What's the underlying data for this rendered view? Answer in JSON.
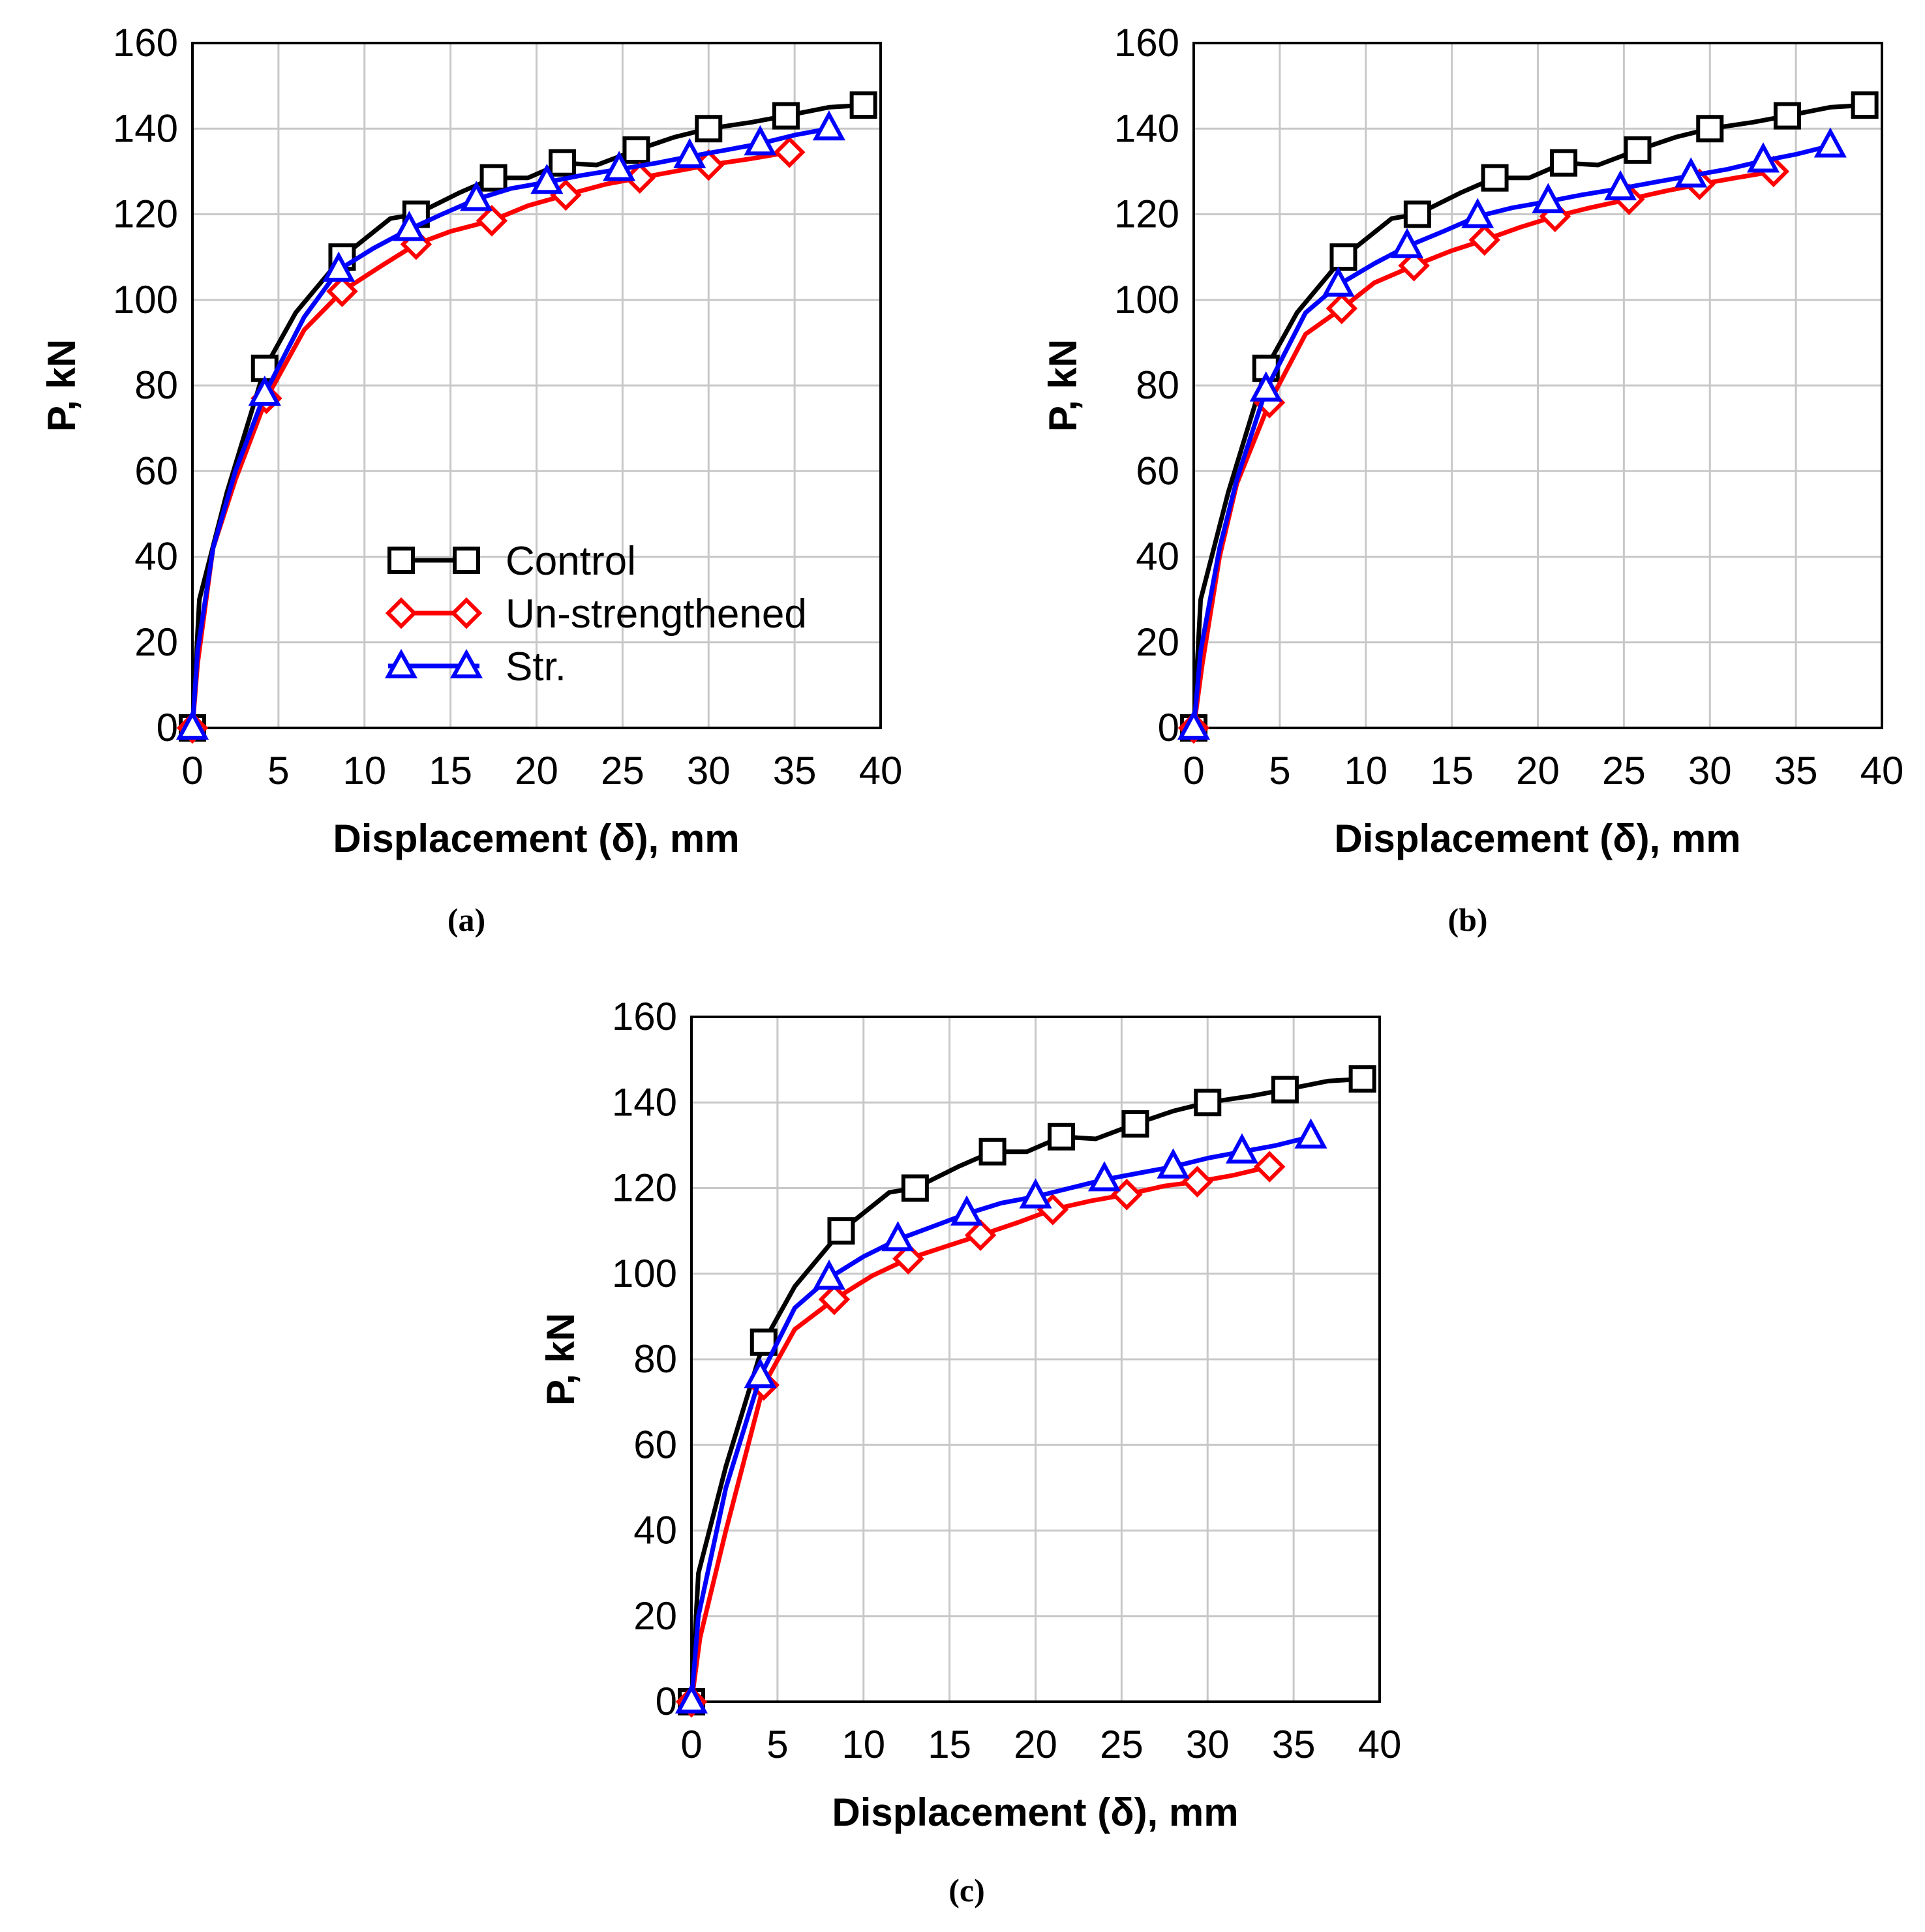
{
  "chart_data": [
    {
      "panel": "(a)",
      "type": "line",
      "xlabel": "Displacement (δ), mm",
      "ylabel": "P, kN",
      "xlim": [
        0,
        40
      ],
      "ylim": [
        0,
        160
      ],
      "xticks": [
        0,
        5,
        10,
        15,
        20,
        25,
        30,
        35,
        40
      ],
      "yticks": [
        0,
        20,
        40,
        60,
        80,
        100,
        120,
        140,
        160
      ],
      "grid": true,
      "legend": {
        "placement": "center-left",
        "entries": [
          "Control",
          "Un-strengthened",
          "Str."
        ]
      },
      "series": [
        {
          "name": "Control",
          "color": "#000000",
          "marker": "square",
          "x": [
            0,
            0.4,
            2,
            4.2,
            6,
            8.7,
            11.5,
            13,
            15.5,
            17.5,
            19.5,
            21.5,
            23.5,
            25.8,
            28,
            30,
            32.5,
            34.5,
            37,
            39
          ],
          "y": [
            0,
            30,
            55,
            84,
            97,
            110,
            119,
            120,
            125,
            128.5,
            128.5,
            132,
            131.5,
            135,
            138,
            140,
            141.5,
            143,
            145,
            145.5
          ],
          "markers_x": [
            0,
            4.2,
            8.7,
            13,
            17.5,
            21.5,
            25.8,
            30,
            34.5,
            39
          ],
          "markers_y": [
            0,
            84,
            110,
            120,
            128.5,
            132,
            135,
            140,
            143,
            145.5
          ]
        },
        {
          "name": "Un-strengthened",
          "color": "#ff0000",
          "marker": "diamond",
          "x": [
            0,
            0.3,
            1.2,
            2.5,
            4.3,
            6.5,
            8.7,
            11,
            13,
            15,
            17.4,
            19.5,
            21.7,
            24,
            26,
            28,
            30,
            32.5,
            34.7
          ],
          "y": [
            0,
            15,
            42,
            58,
            77,
            93,
            102,
            108,
            113,
            116,
            118.5,
            122,
            124.5,
            127,
            128.5,
            130,
            131.5,
            133,
            134.5
          ],
          "markers_x": [
            0,
            4.3,
            8.7,
            13,
            17.4,
            21.7,
            26,
            30,
            34.7
          ],
          "markers_y": [
            0,
            77,
            102,
            113,
            118.5,
            124.5,
            128.5,
            131.5,
            134.5
          ]
        },
        {
          "name": "Str.",
          "color": "#0000ff",
          "marker": "triangle",
          "x": [
            0,
            0.3,
            1.2,
            2.5,
            4.2,
            6.5,
            8.5,
            10.5,
            12.6,
            14.5,
            16.5,
            18.5,
            20.6,
            22.5,
            24.8,
            27,
            28.9,
            31,
            33,
            35,
            37
          ],
          "y": [
            0,
            18,
            42,
            60,
            78,
            96,
            107,
            112,
            116.5,
            120,
            123.5,
            126,
            127.5,
            129,
            130.5,
            132,
            133.5,
            135,
            136.5,
            138.5,
            140
          ],
          "markers_x": [
            0,
            4.2,
            8.5,
            12.6,
            16.5,
            20.6,
            24.8,
            28.9,
            33,
            37
          ],
          "markers_y": [
            0,
            78,
            107,
            116.5,
            123.5,
            127.5,
            130.5,
            133.5,
            136.5,
            140
          ]
        }
      ]
    },
    {
      "panel": "(b)",
      "type": "line",
      "xlabel": "Displacement (δ), mm",
      "ylabel": "P, kN",
      "xlim": [
        0,
        40
      ],
      "ylim": [
        0,
        160
      ],
      "xticks": [
        0,
        5,
        10,
        15,
        20,
        25,
        30,
        35,
        40
      ],
      "yticks": [
        0,
        20,
        40,
        60,
        80,
        100,
        120,
        140,
        160
      ],
      "grid": true,
      "series": [
        {
          "name": "Control",
          "color": "#000000",
          "marker": "square",
          "x": [
            0,
            0.4,
            2,
            4.2,
            6,
            8.7,
            11.5,
            13,
            15.5,
            17.5,
            19.5,
            21.5,
            23.5,
            25.8,
            28,
            30,
            32.5,
            34.5,
            37,
            39
          ],
          "y": [
            0,
            30,
            55,
            84,
            97,
            110,
            119,
            120,
            125,
            128.5,
            128.5,
            132,
            131.5,
            135,
            138,
            140,
            141.5,
            143,
            145,
            145.5
          ],
          "markers_x": [
            0,
            4.2,
            8.7,
            13,
            17.5,
            21.5,
            25.8,
            30,
            34.5,
            39
          ],
          "markers_y": [
            0,
            84,
            110,
            120,
            128.5,
            132,
            135,
            140,
            143,
            145.5
          ]
        },
        {
          "name": "Un-strengthened",
          "color": "#ff0000",
          "marker": "diamond",
          "x": [
            0,
            0.5,
            1.5,
            2.5,
            4.4,
            6.5,
            8.6,
            10.5,
            12.8,
            15,
            16.9,
            19,
            21,
            23,
            25.3,
            27.5,
            29.4,
            31.5,
            33.7
          ],
          "y": [
            0,
            15,
            40,
            57,
            76,
            92,
            98,
            104,
            108,
            111.5,
            114,
            117,
            119.5,
            121.5,
            123.5,
            125.5,
            127,
            128.5,
            130
          ],
          "markers_x": [
            0,
            4.4,
            8.6,
            12.8,
            16.9,
            21,
            25.3,
            29.4,
            33.7
          ],
          "markers_y": [
            0,
            76,
            98,
            108,
            114,
            119.5,
            123.5,
            127,
            130
          ]
        },
        {
          "name": "Str.",
          "color": "#0000ff",
          "marker": "triangle",
          "x": [
            0,
            0.4,
            1.5,
            2.5,
            4.2,
            6.5,
            8.4,
            10.5,
            12.4,
            14.5,
            16.5,
            18.5,
            20.6,
            22.5,
            24.8,
            26.8,
            28.9,
            31,
            33.1,
            35,
            37
          ],
          "y": [
            0,
            18,
            42,
            58,
            79,
            97,
            103.5,
            108.5,
            112.5,
            116,
            119.5,
            121.5,
            123,
            124.5,
            126,
            127.5,
            129,
            130.5,
            132.5,
            134,
            136
          ],
          "markers_x": [
            0,
            4.2,
            8.4,
            12.4,
            16.5,
            20.6,
            24.8,
            28.9,
            33.1,
            37
          ],
          "markers_y": [
            0,
            79,
            103.5,
            112.5,
            119.5,
            123,
            126,
            129,
            132.5,
            136
          ]
        }
      ]
    },
    {
      "panel": "(c)",
      "type": "line",
      "xlabel": "Displacement (δ), mm",
      "ylabel": "P, kN",
      "xlim": [
        0,
        40
      ],
      "ylim": [
        0,
        160
      ],
      "xticks": [
        0,
        5,
        10,
        15,
        20,
        25,
        30,
        35,
        40
      ],
      "yticks": [
        0,
        20,
        40,
        60,
        80,
        100,
        120,
        140,
        160
      ],
      "grid": true,
      "series": [
        {
          "name": "Control",
          "color": "#000000",
          "marker": "square",
          "x": [
            0,
            0.4,
            2,
            4.2,
            6,
            8.7,
            11.5,
            13,
            15.5,
            17.5,
            19.5,
            21.5,
            23.5,
            25.8,
            28,
            30,
            32.5,
            34.5,
            37,
            39
          ],
          "y": [
            0,
            30,
            55,
            84,
            97,
            110,
            119,
            120,
            125,
            128.5,
            128.5,
            132,
            131.5,
            135,
            138,
            140,
            141.5,
            143,
            145,
            145.5
          ],
          "markers_x": [
            0,
            4.2,
            8.7,
            13,
            17.5,
            21.5,
            25.8,
            30,
            34.5,
            39
          ],
          "markers_y": [
            0,
            84,
            110,
            120,
            128.5,
            132,
            135,
            140,
            143,
            145.5
          ]
        },
        {
          "name": "Un-strengthened",
          "color": "#ff0000",
          "marker": "diamond",
          "x": [
            0,
            0.5,
            2,
            4.2,
            6,
            8.3,
            10.5,
            12.6,
            14.5,
            16.8,
            19,
            21,
            23.2,
            25.3,
            27.5,
            29.4,
            31.5,
            33.6
          ],
          "y": [
            0,
            15,
            40,
            74,
            87,
            94,
            99.5,
            103.5,
            106,
            109,
            112,
            115,
            117,
            118.5,
            120.5,
            121.5,
            123,
            125
          ],
          "markers_x": [
            0,
            4.2,
            8.3,
            12.6,
            16.8,
            21,
            25.3,
            29.4,
            33.6
          ],
          "markers_y": [
            0,
            74,
            94,
            103.5,
            109,
            115,
            118.5,
            121.5,
            125
          ]
        },
        {
          "name": "Str.",
          "color": "#0000ff",
          "marker": "triangle",
          "x": [
            0,
            0.4,
            2,
            4,
            6,
            8,
            10,
            12,
            14,
            16,
            18,
            20,
            22,
            24,
            26,
            28,
            30,
            32,
            34,
            36
          ],
          "y": [
            0,
            20,
            50,
            76,
            92,
            99,
            104,
            108,
            111,
            114,
            116.5,
            118,
            120,
            122,
            123.5,
            125,
            127,
            128.5,
            130,
            132
          ],
          "markers_x": [
            0,
            4,
            8,
            12,
            16,
            20,
            24,
            28,
            32,
            36
          ],
          "markers_y": [
            0,
            76,
            99,
            108,
            114,
            118,
            122,
            125,
            128.5,
            132
          ]
        }
      ]
    }
  ]
}
